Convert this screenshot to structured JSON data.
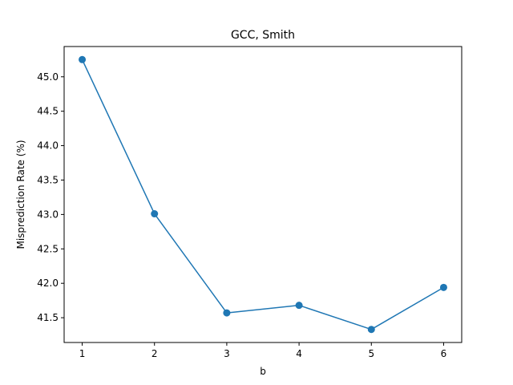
{
  "chart_data": {
    "type": "line",
    "title": "GCC, Smith",
    "xlabel": "b",
    "ylabel": "Misprediction Rate (%)",
    "x": [
      1,
      2,
      3,
      4,
      5,
      6
    ],
    "series": [
      {
        "values": [
          45.25,
          43.01,
          41.57,
          41.68,
          41.33,
          41.94
        ],
        "color": "#1f77b4",
        "marker": "circle"
      }
    ],
    "xlim": [
      0.75,
      6.25
    ],
    "ylim": [
      41.14,
      45.44
    ],
    "xticks": [
      1,
      2,
      3,
      4,
      5,
      6
    ],
    "yticks": [
      41.5,
      42.0,
      42.5,
      43.0,
      43.5,
      44.0,
      44.5,
      45.0
    ],
    "xtick_labels": [
      "1",
      "2",
      "3",
      "4",
      "5",
      "6"
    ],
    "ytick_labels": [
      "41.5",
      "42.0",
      "42.5",
      "43.0",
      "43.5",
      "44.0",
      "44.5",
      "45.0"
    ],
    "grid": false,
    "legend": "none"
  }
}
